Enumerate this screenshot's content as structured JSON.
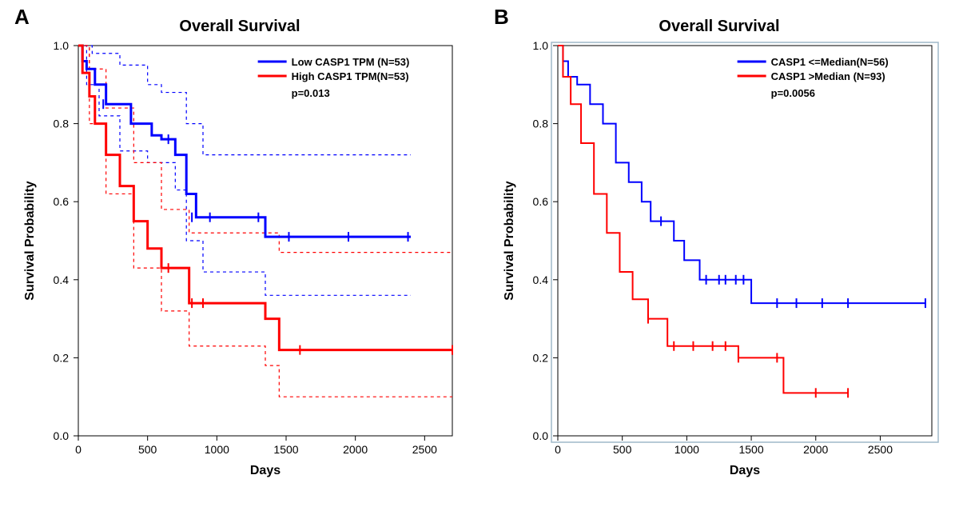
{
  "panelA": {
    "label": "A",
    "title": "Overall Survival",
    "xlabel": "Days",
    "ylabel": "Survival Probability",
    "xlim": [
      0,
      2700
    ],
    "ylim": [
      0.0,
      1.0
    ],
    "xticks": [
      0,
      500,
      1000,
      1500,
      2000,
      2500
    ],
    "yticks": [
      0.0,
      0.2,
      0.4,
      0.6,
      0.8,
      1.0
    ],
    "background_color": "#ffffff",
    "axis_color": "#000000",
    "line_width_main": 3,
    "line_width_ci": 1.2,
    "dash_ci": "4 4",
    "tick_fontsize": 14,
    "label_fontsize": 16,
    "colors": {
      "low": "#0000ff",
      "high": "#ff0000"
    },
    "legend": [
      {
        "label": "Low CASP1 TPM (N=53)",
        "color": "#0000ff"
      },
      {
        "label": "High CASP1 TPM(N=53)",
        "color": "#ff0000"
      }
    ],
    "pvalue_text": "p=0.013",
    "series": {
      "low_main": [
        [
          0,
          1.0
        ],
        [
          30,
          0.96
        ],
        [
          60,
          0.94
        ],
        [
          120,
          0.9
        ],
        [
          200,
          0.85
        ],
        [
          350,
          0.85
        ],
        [
          380,
          0.8
        ],
        [
          500,
          0.8
        ],
        [
          530,
          0.77
        ],
        [
          600,
          0.76
        ],
        [
          700,
          0.72
        ],
        [
          780,
          0.62
        ],
        [
          850,
          0.56
        ],
        [
          950,
          0.56
        ],
        [
          1300,
          0.56
        ],
        [
          1350,
          0.51
        ],
        [
          1500,
          0.51
        ],
        [
          2400,
          0.51
        ]
      ],
      "low_upper": [
        [
          0,
          1.0
        ],
        [
          100,
          0.98
        ],
        [
          300,
          0.95
        ],
        [
          500,
          0.9
        ],
        [
          600,
          0.88
        ],
        [
          780,
          0.8
        ],
        [
          900,
          0.72
        ],
        [
          1100,
          0.72
        ],
        [
          1500,
          0.72
        ],
        [
          2400,
          0.72
        ]
      ],
      "low_lower": [
        [
          0,
          1.0
        ],
        [
          60,
          0.9
        ],
        [
          150,
          0.82
        ],
        [
          300,
          0.73
        ],
        [
          500,
          0.7
        ],
        [
          700,
          0.63
        ],
        [
          780,
          0.5
        ],
        [
          900,
          0.42
        ],
        [
          1100,
          0.42
        ],
        [
          1350,
          0.36
        ],
        [
          1500,
          0.36
        ],
        [
          2400,
          0.36
        ]
      ],
      "high_main": [
        [
          0,
          1.0
        ],
        [
          30,
          0.93
        ],
        [
          80,
          0.87
        ],
        [
          120,
          0.8
        ],
        [
          200,
          0.72
        ],
        [
          300,
          0.64
        ],
        [
          400,
          0.55
        ],
        [
          500,
          0.48
        ],
        [
          600,
          0.43
        ],
        [
          800,
          0.34
        ],
        [
          900,
          0.34
        ],
        [
          1300,
          0.34
        ],
        [
          1350,
          0.3
        ],
        [
          1450,
          0.22
        ],
        [
          1600,
          0.22
        ],
        [
          2700,
          0.22
        ]
      ],
      "high_upper": [
        [
          0,
          1.0
        ],
        [
          80,
          0.94
        ],
        [
          200,
          0.84
        ],
        [
          400,
          0.7
        ],
        [
          600,
          0.58
        ],
        [
          800,
          0.52
        ],
        [
          1000,
          0.52
        ],
        [
          1300,
          0.52
        ],
        [
          1450,
          0.47
        ],
        [
          1600,
          0.47
        ],
        [
          2700,
          0.47
        ]
      ],
      "high_lower": [
        [
          0,
          1.0
        ],
        [
          80,
          0.8
        ],
        [
          200,
          0.62
        ],
        [
          400,
          0.43
        ],
        [
          600,
          0.32
        ],
        [
          800,
          0.23
        ],
        [
          1000,
          0.23
        ],
        [
          1300,
          0.23
        ],
        [
          1350,
          0.18
        ],
        [
          1450,
          0.1
        ],
        [
          1600,
          0.1
        ],
        [
          2700,
          0.1
        ]
      ]
    },
    "censor_ticks": {
      "low": [
        [
          180,
          0.85
        ],
        [
          650,
          0.76
        ],
        [
          820,
          0.56
        ],
        [
          950,
          0.56
        ],
        [
          1300,
          0.56
        ],
        [
          1520,
          0.51
        ],
        [
          1950,
          0.51
        ],
        [
          2380,
          0.51
        ]
      ],
      "high": [
        [
          650,
          0.43
        ],
        [
          820,
          0.34
        ],
        [
          900,
          0.34
        ],
        [
          1600,
          0.22
        ],
        [
          2700,
          0.22
        ]
      ]
    }
  },
  "panelB": {
    "label": "B",
    "title": "Overall Survival",
    "xlabel": "Days",
    "ylabel": "Survival Probability",
    "xlim": [
      0,
      2900
    ],
    "ylim": [
      0.0,
      1.0
    ],
    "xticks": [
      0,
      500,
      1000,
      1500,
      2000,
      2500
    ],
    "yticks": [
      0.0,
      0.2,
      0.4,
      0.6,
      0.8,
      1.0
    ],
    "background_color": "#ffffff",
    "axis_color": "#000000",
    "line_width_main": 2,
    "tick_fontsize": 14,
    "label_fontsize": 16,
    "frame_outer_color": "#9fb8c8",
    "colors": {
      "low": "#0000ff",
      "high": "#ff0000"
    },
    "legend": [
      {
        "label": "CASP1 <=Median(N=56)",
        "color": "#0000ff"
      },
      {
        "label": "CASP1  >Median (N=93)",
        "color": "#ff0000"
      }
    ],
    "pvalue_text": "p=0.0056",
    "series": {
      "low_main": [
        [
          0,
          1.0
        ],
        [
          40,
          0.96
        ],
        [
          80,
          0.92
        ],
        [
          150,
          0.9
        ],
        [
          250,
          0.85
        ],
        [
          350,
          0.8
        ],
        [
          450,
          0.7
        ],
        [
          550,
          0.65
        ],
        [
          650,
          0.6
        ],
        [
          720,
          0.55
        ],
        [
          800,
          0.55
        ],
        [
          900,
          0.5
        ],
        [
          980,
          0.45
        ],
        [
          1100,
          0.4
        ],
        [
          1300,
          0.4
        ],
        [
          1450,
          0.4
        ],
        [
          1500,
          0.34
        ],
        [
          1700,
          0.34
        ],
        [
          2100,
          0.34
        ],
        [
          2250,
          0.34
        ],
        [
          2850,
          0.34
        ]
      ],
      "high_main": [
        [
          0,
          1.0
        ],
        [
          40,
          0.92
        ],
        [
          100,
          0.85
        ],
        [
          180,
          0.75
        ],
        [
          280,
          0.62
        ],
        [
          380,
          0.52
        ],
        [
          480,
          0.42
        ],
        [
          580,
          0.35
        ],
        [
          700,
          0.3
        ],
        [
          850,
          0.23
        ],
        [
          1000,
          0.23
        ],
        [
          1300,
          0.23
        ],
        [
          1400,
          0.2
        ],
        [
          1700,
          0.2
        ],
        [
          1750,
          0.11
        ],
        [
          2000,
          0.11
        ],
        [
          2250,
          0.11
        ]
      ]
    },
    "censor_ticks": {
      "low": [
        [
          800,
          0.55
        ],
        [
          1150,
          0.4
        ],
        [
          1250,
          0.4
        ],
        [
          1300,
          0.4
        ],
        [
          1380,
          0.4
        ],
        [
          1440,
          0.4
        ],
        [
          1700,
          0.34
        ],
        [
          1850,
          0.34
        ],
        [
          2050,
          0.34
        ],
        [
          2250,
          0.34
        ],
        [
          2850,
          0.34
        ]
      ],
      "high": [
        [
          700,
          0.3
        ],
        [
          900,
          0.23
        ],
        [
          1050,
          0.23
        ],
        [
          1200,
          0.23
        ],
        [
          1300,
          0.23
        ],
        [
          1400,
          0.2
        ],
        [
          1700,
          0.2
        ],
        [
          2000,
          0.11
        ],
        [
          2250,
          0.11
        ]
      ]
    }
  }
}
